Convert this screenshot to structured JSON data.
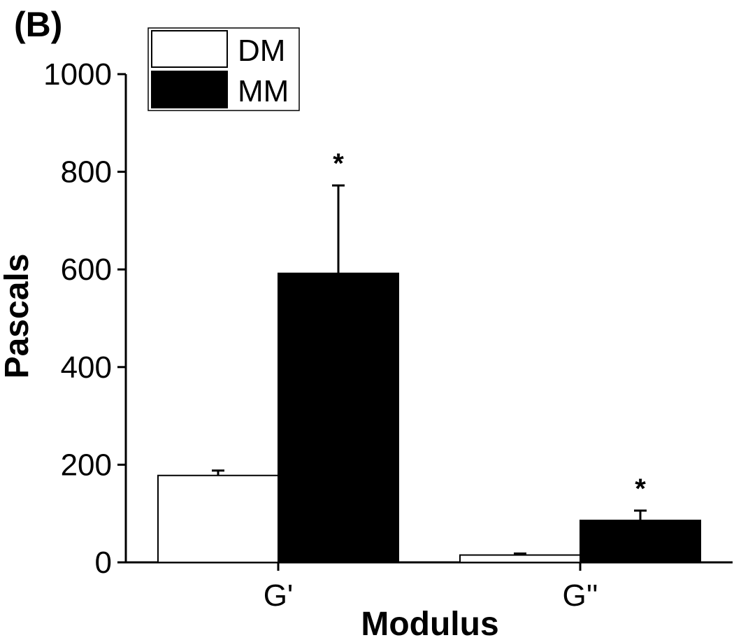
{
  "panel_label": "(B)",
  "chart_data": {
    "type": "bar",
    "title": "",
    "xlabel": "Modulus",
    "ylabel": "Pascals",
    "categories": [
      "G'",
      "G''"
    ],
    "ylim": [
      0,
      1000
    ],
    "yticks": [
      0,
      200,
      400,
      600,
      800,
      1000
    ],
    "series": [
      {
        "name": "DM",
        "values": [
          178,
          15
        ],
        "errors": [
          10,
          3
        ],
        "color": "#ffffff",
        "edge": "#000000"
      },
      {
        "name": "MM",
        "values": [
          592,
          86
        ],
        "errors": [
          180,
          20
        ],
        "color": "#000000",
        "edge": "#000000"
      }
    ],
    "annotations": [
      {
        "category": "G'",
        "series": "MM",
        "text": "*"
      },
      {
        "category": "G''",
        "series": "MM",
        "text": "*"
      }
    ],
    "legend_position": "top-left",
    "grid": false
  }
}
